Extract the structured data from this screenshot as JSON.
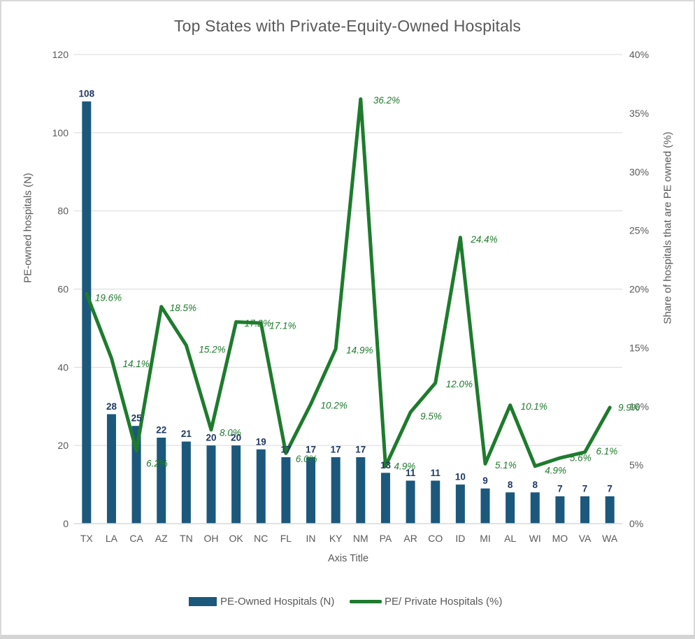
{
  "page": {
    "title": "Top States with Private-Equity-Owned Hospitals"
  },
  "colors": {
    "bar": "#1B587C",
    "line": "#1E7B2D",
    "bar_label": "#1F3864",
    "point_label": "#1E7B2D",
    "axis_text": "#595959",
    "gridline": "#D9D9D9"
  },
  "chart_data": {
    "type": "combo-bar-line",
    "title": "Top States with Private-Equity-Owned Hospitals",
    "categories": [
      "TX",
      "LA",
      "CA",
      "AZ",
      "TN",
      "OH",
      "OK",
      "NC",
      "FL",
      "IN",
      "KY",
      "NM",
      "PA",
      "AR",
      "CO",
      "ID",
      "MI",
      "AL",
      "WI",
      "MO",
      "VA",
      "WA"
    ],
    "series": [
      {
        "name": "PE-Owned Hospitals (N)",
        "type": "bar",
        "axis": "left",
        "values": [
          108,
          28,
          25,
          22,
          21,
          20,
          20,
          19,
          17,
          17,
          17,
          17,
          13,
          11,
          11,
          10,
          9,
          8,
          8,
          7,
          7,
          7
        ]
      },
      {
        "name": "PE/ Private Hospitals (%)",
        "type": "line",
        "axis": "right",
        "values": [
          19.6,
          14.1,
          6.2,
          18.5,
          15.2,
          8.0,
          17.2,
          17.1,
          6.0,
          10.2,
          14.9,
          36.2,
          4.9,
          9.5,
          12.0,
          24.4,
          5.1,
          10.1,
          4.9,
          5.6,
          6.1,
          9.9
        ],
        "labels": [
          "19.6%",
          "14.1%",
          "6.2%",
          "18.5%",
          "15.2%",
          "8.0%",
          "17.2%",
          "17.1%",
          "6.0%",
          "10.2%",
          "14.9%",
          "36.2%",
          "4.9%",
          "9.5%",
          "12.0%",
          "24.4%",
          "5.1%",
          "10.1%",
          "4.9%",
          "5.6%",
          "6.1%",
          "9.9%"
        ]
      }
    ],
    "x_axis": {
      "title": "Axis Title"
    },
    "y_axis_left": {
      "title": "PE-owned hospitals (N)",
      "min": 0,
      "max": 120,
      "step": 20,
      "tick_labels": [
        "0",
        "20",
        "40",
        "60",
        "80",
        "100",
        "120"
      ]
    },
    "y_axis_right": {
      "title": "Share of hospitals that are PE owned (%)",
      "min": 0,
      "max": 40,
      "step": 5,
      "tick_labels": [
        "0%",
        "5%",
        "10%",
        "15%",
        "20%",
        "25%",
        "30%",
        "35%",
        "40%"
      ]
    },
    "grid": true,
    "legend_position": "bottom"
  }
}
